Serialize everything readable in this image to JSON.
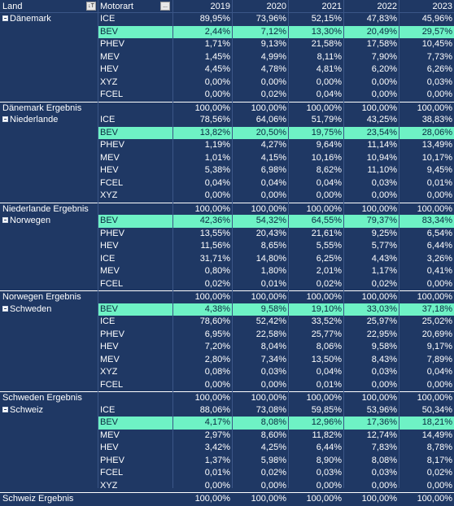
{
  "header": {
    "land": "Land",
    "motorart": "Motorart",
    "years": [
      "2019",
      "2020",
      "2021",
      "2022",
      "2023"
    ],
    "land_filter_icon": "sort-filter-icon",
    "motorart_filter_icon": "ellipsis-icon",
    "land_filter_glyph": "↓T",
    "motorart_filter_glyph": "..."
  },
  "highlight_color": "#6ef2c5",
  "background_color": "#1f3864",
  "groups": [
    {
      "land": "Dänemark",
      "rows": [
        {
          "motor": "ICE",
          "values": [
            "89,95%",
            "73,96%",
            "52,15%",
            "47,83%",
            "45,96%"
          ],
          "highlight": false
        },
        {
          "motor": "BEV",
          "values": [
            "2,44%",
            "7,12%",
            "13,30%",
            "20,49%",
            "29,57%"
          ],
          "highlight": true
        },
        {
          "motor": "PHEV",
          "values": [
            "1,71%",
            "9,13%",
            "21,58%",
            "17,58%",
            "10,45%"
          ],
          "highlight": false
        },
        {
          "motor": "MEV",
          "values": [
            "1,45%",
            "4,99%",
            "8,11%",
            "7,90%",
            "7,73%"
          ],
          "highlight": false
        },
        {
          "motor": "HEV",
          "values": [
            "4,45%",
            "4,78%",
            "4,81%",
            "6,20%",
            "6,26%"
          ],
          "highlight": false
        },
        {
          "motor": "XYZ",
          "values": [
            "0,00%",
            "0,00%",
            "0,00%",
            "0,00%",
            "0,03%"
          ],
          "highlight": false
        },
        {
          "motor": "FCEL",
          "values": [
            "0,00%",
            "0,02%",
            "0,04%",
            "0,00%",
            "0,00%"
          ],
          "highlight": false
        }
      ],
      "total_label": "Dänemark Ergebnis",
      "total_values": [
        "100,00%",
        "100,00%",
        "100,00%",
        "100,00%",
        "100,00%"
      ]
    },
    {
      "land": "Niederlande",
      "rows": [
        {
          "motor": "ICE",
          "values": [
            "78,56%",
            "64,06%",
            "51,79%",
            "43,25%",
            "38,83%"
          ],
          "highlight": false
        },
        {
          "motor": "BEV",
          "values": [
            "13,82%",
            "20,50%",
            "19,75%",
            "23,54%",
            "28,06%"
          ],
          "highlight": true
        },
        {
          "motor": "PHEV",
          "values": [
            "1,19%",
            "4,27%",
            "9,64%",
            "11,14%",
            "13,49%"
          ],
          "highlight": false
        },
        {
          "motor": "MEV",
          "values": [
            "1,01%",
            "4,15%",
            "10,16%",
            "10,94%",
            "10,17%"
          ],
          "highlight": false
        },
        {
          "motor": "HEV",
          "values": [
            "5,38%",
            "6,98%",
            "8,62%",
            "11,10%",
            "9,45%"
          ],
          "highlight": false
        },
        {
          "motor": "FCEL",
          "values": [
            "0,04%",
            "0,04%",
            "0,04%",
            "0,03%",
            "0,01%"
          ],
          "highlight": false
        },
        {
          "motor": "XYZ",
          "values": [
            "0,00%",
            "0,00%",
            "0,00%",
            "0,00%",
            "0,00%"
          ],
          "highlight": false
        }
      ],
      "total_label": "Niederlande Ergebnis",
      "total_values": [
        "100,00%",
        "100,00%",
        "100,00%",
        "100,00%",
        "100,00%"
      ]
    },
    {
      "land": "Norwegen",
      "rows": [
        {
          "motor": "BEV",
          "values": [
            "42,36%",
            "54,32%",
            "64,55%",
            "79,37%",
            "83,34%"
          ],
          "highlight": true
        },
        {
          "motor": "PHEV",
          "values": [
            "13,55%",
            "20,43%",
            "21,61%",
            "9,25%",
            "6,54%"
          ],
          "highlight": false
        },
        {
          "motor": "HEV",
          "values": [
            "11,56%",
            "8,65%",
            "5,55%",
            "5,77%",
            "6,44%"
          ],
          "highlight": false
        },
        {
          "motor": "ICE",
          "values": [
            "31,71%",
            "14,80%",
            "6,25%",
            "4,43%",
            "3,26%"
          ],
          "highlight": false
        },
        {
          "motor": "MEV",
          "values": [
            "0,80%",
            "1,80%",
            "2,01%",
            "1,17%",
            "0,41%"
          ],
          "highlight": false
        },
        {
          "motor": "FCEL",
          "values": [
            "0,02%",
            "0,01%",
            "0,02%",
            "0,02%",
            "0,00%"
          ],
          "highlight": false
        }
      ],
      "total_label": "Norwegen Ergebnis",
      "total_values": [
        "100,00%",
        "100,00%",
        "100,00%",
        "100,00%",
        "100,00%"
      ]
    },
    {
      "land": "Schweden",
      "rows": [
        {
          "motor": "BEV",
          "values": [
            "4,38%",
            "9,58%",
            "19,10%",
            "33,03%",
            "37,18%"
          ],
          "highlight": true
        },
        {
          "motor": "ICE",
          "values": [
            "78,60%",
            "52,42%",
            "33,52%",
            "25,97%",
            "25,02%"
          ],
          "highlight": false
        },
        {
          "motor": "PHEV",
          "values": [
            "6,95%",
            "22,58%",
            "25,77%",
            "22,95%",
            "20,69%"
          ],
          "highlight": false
        },
        {
          "motor": "HEV",
          "values": [
            "7,20%",
            "8,04%",
            "8,06%",
            "9,58%",
            "9,17%"
          ],
          "highlight": false
        },
        {
          "motor": "MEV",
          "values": [
            "2,80%",
            "7,34%",
            "13,50%",
            "8,43%",
            "7,89%"
          ],
          "highlight": false
        },
        {
          "motor": "XYZ",
          "values": [
            "0,08%",
            "0,03%",
            "0,04%",
            "0,03%",
            "0,04%"
          ],
          "highlight": false
        },
        {
          "motor": "FCEL",
          "values": [
            "0,00%",
            "0,00%",
            "0,01%",
            "0,00%",
            "0,00%"
          ],
          "highlight": false
        }
      ],
      "total_label": "Schweden Ergebnis",
      "total_values": [
        "100,00%",
        "100,00%",
        "100,00%",
        "100,00%",
        "100,00%"
      ]
    },
    {
      "land": "Schweiz",
      "rows": [
        {
          "motor": "ICE",
          "values": [
            "88,06%",
            "73,08%",
            "59,85%",
            "53,96%",
            "50,34%"
          ],
          "highlight": false
        },
        {
          "motor": "BEV",
          "values": [
            "4,17%",
            "8,08%",
            "12,96%",
            "17,36%",
            "18,21%"
          ],
          "highlight": true
        },
        {
          "motor": "MEV",
          "values": [
            "2,97%",
            "8,60%",
            "11,82%",
            "12,74%",
            "14,49%"
          ],
          "highlight": false
        },
        {
          "motor": "HEV",
          "values": [
            "3,42%",
            "4,25%",
            "6,44%",
            "7,83%",
            "8,78%"
          ],
          "highlight": false
        },
        {
          "motor": "PHEV",
          "values": [
            "1,37%",
            "5,98%",
            "8,90%",
            "8,08%",
            "8,17%"
          ],
          "highlight": false
        },
        {
          "motor": "FCEL",
          "values": [
            "0,01%",
            "0,02%",
            "0,03%",
            "0,03%",
            "0,02%"
          ],
          "highlight": false
        },
        {
          "motor": "XYZ",
          "values": [
            "0,00%",
            "0,00%",
            "0,00%",
            "0,00%",
            "0,00%"
          ],
          "highlight": false
        }
      ],
      "total_label": "Schweiz Ergebnis",
      "total_values": [
        "100,00%",
        "100,00%",
        "100,00%",
        "100,00%",
        "100,00%"
      ]
    }
  ]
}
